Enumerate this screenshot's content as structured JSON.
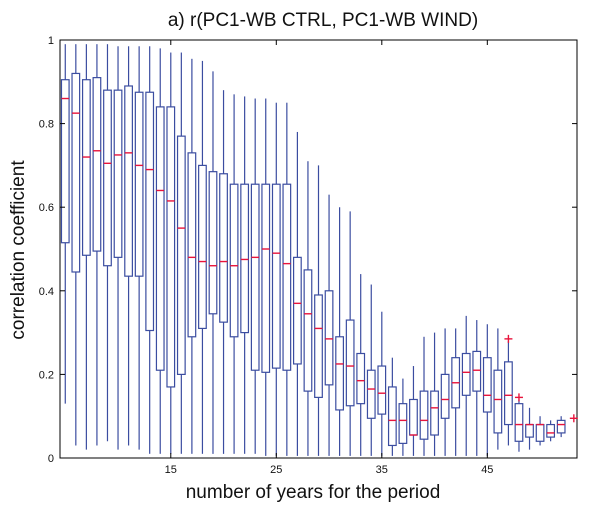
{
  "chart_data": {
    "type": "boxplot",
    "title": "a) r(PC1-WB CTRL, PC1-WB WIND)",
    "xlabel": "number of years for the period",
    "ylabel": "correlation coefficient",
    "xlim": [
      4.5,
      53.5
    ],
    "ylim": [
      0,
      1
    ],
    "xticks": [
      15,
      25,
      35,
      45
    ],
    "yticks": [
      0,
      0.2,
      0.4,
      0.6,
      0.8,
      1
    ],
    "ytick_labels": [
      "0",
      "0.2",
      "0.4",
      "0.6",
      "0.8",
      "1"
    ],
    "grid": false,
    "box_color": "#3b4da0",
    "median_color": "#e8143c",
    "outlier_color": "#e8143c",
    "boxes": [
      {
        "x": 5,
        "low": 0.13,
        "q1": 0.515,
        "median": 0.86,
        "q3": 0.905,
        "high": 0.99
      },
      {
        "x": 6,
        "low": 0.03,
        "q1": 0.445,
        "median": 0.825,
        "q3": 0.92,
        "high": 0.99
      },
      {
        "x": 7,
        "low": 0.02,
        "q1": 0.485,
        "median": 0.72,
        "q3": 0.905,
        "high": 0.99
      },
      {
        "x": 8,
        "low": 0.03,
        "q1": 0.495,
        "median": 0.735,
        "q3": 0.91,
        "high": 0.99
      },
      {
        "x": 9,
        "low": 0.04,
        "q1": 0.46,
        "median": 0.705,
        "q3": 0.88,
        "high": 0.99
      },
      {
        "x": 10,
        "low": 0.02,
        "q1": 0.48,
        "median": 0.725,
        "q3": 0.88,
        "high": 0.985
      },
      {
        "x": 11,
        "low": 0.03,
        "q1": 0.435,
        "median": 0.73,
        "q3": 0.89,
        "high": 0.985
      },
      {
        "x": 12,
        "low": 0.02,
        "q1": 0.435,
        "median": 0.7,
        "q3": 0.875,
        "high": 0.985
      },
      {
        "x": 13,
        "low": 0.01,
        "q1": 0.305,
        "median": 0.69,
        "q3": 0.875,
        "high": 0.985
      },
      {
        "x": 14,
        "low": 0.01,
        "q1": 0.21,
        "median": 0.64,
        "q3": 0.84,
        "high": 0.98
      },
      {
        "x": 15,
        "low": 0.01,
        "q1": 0.17,
        "median": 0.615,
        "q3": 0.84,
        "high": 0.97
      },
      {
        "x": 16,
        "low": 0.01,
        "q1": 0.2,
        "median": 0.55,
        "q3": 0.77,
        "high": 0.97
      },
      {
        "x": 17,
        "low": 0.01,
        "q1": 0.29,
        "median": 0.48,
        "q3": 0.73,
        "high": 0.955
      },
      {
        "x": 18,
        "low": 0.01,
        "q1": 0.31,
        "median": 0.47,
        "q3": 0.7,
        "high": 0.95
      },
      {
        "x": 19,
        "low": 0.01,
        "q1": 0.345,
        "median": 0.46,
        "q3": 0.685,
        "high": 0.925
      },
      {
        "x": 20,
        "low": 0.01,
        "q1": 0.325,
        "median": 0.47,
        "q3": 0.68,
        "high": 0.88
      },
      {
        "x": 21,
        "low": 0.01,
        "q1": 0.29,
        "median": 0.46,
        "q3": 0.655,
        "high": 0.87
      },
      {
        "x": 22,
        "low": 0.01,
        "q1": 0.3,
        "median": 0.475,
        "q3": 0.655,
        "high": 0.865
      },
      {
        "x": 23,
        "low": 0.01,
        "q1": 0.21,
        "median": 0.48,
        "q3": 0.655,
        "high": 0.86
      },
      {
        "x": 24,
        "low": 0.005,
        "q1": 0.205,
        "median": 0.5,
        "q3": 0.655,
        "high": 0.86
      },
      {
        "x": 25,
        "low": 0.005,
        "q1": 0.215,
        "median": 0.49,
        "q3": 0.655,
        "high": 0.85
      },
      {
        "x": 26,
        "low": 0.005,
        "q1": 0.21,
        "median": 0.465,
        "q3": 0.655,
        "high": 0.85
      },
      {
        "x": 27,
        "low": 0.005,
        "q1": 0.225,
        "median": 0.37,
        "q3": 0.48,
        "high": 0.78
      },
      {
        "x": 28,
        "low": 0.005,
        "q1": 0.16,
        "median": 0.345,
        "q3": 0.45,
        "high": 0.71
      },
      {
        "x": 29,
        "low": 0.005,
        "q1": 0.145,
        "median": 0.31,
        "q3": 0.39,
        "high": 0.7
      },
      {
        "x": 30,
        "low": 0.005,
        "q1": 0.175,
        "median": 0.285,
        "q3": 0.4,
        "high": 0.63
      },
      {
        "x": 31,
        "low": 0.005,
        "q1": 0.115,
        "median": 0.225,
        "q3": 0.29,
        "high": 0.6
      },
      {
        "x": 32,
        "low": 0.005,
        "q1": 0.125,
        "median": 0.22,
        "q3": 0.33,
        "high": 0.59
      },
      {
        "x": 33,
        "low": 0.005,
        "q1": 0.13,
        "median": 0.185,
        "q3": 0.25,
        "high": 0.44
      },
      {
        "x": 34,
        "low": 0.005,
        "q1": 0.095,
        "median": 0.165,
        "q3": 0.21,
        "high": 0.415
      },
      {
        "x": 35,
        "low": 0.005,
        "q1": 0.105,
        "median": 0.155,
        "q3": 0.22,
        "high": 0.35
      },
      {
        "x": 36,
        "low": 0.005,
        "q1": 0.03,
        "median": 0.09,
        "q3": 0.17,
        "high": 0.24
      },
      {
        "x": 37,
        "low": 0.005,
        "q1": 0.035,
        "median": 0.09,
        "q3": 0.13,
        "high": 0.19
      },
      {
        "x": 38,
        "low": 0.005,
        "q1": 0.055,
        "median": 0.055,
        "q3": 0.14,
        "high": 0.22
      },
      {
        "x": 39,
        "low": 0.005,
        "q1": 0.045,
        "median": 0.09,
        "q3": 0.16,
        "high": 0.29
      },
      {
        "x": 40,
        "low": 0.005,
        "q1": 0.055,
        "median": 0.12,
        "q3": 0.16,
        "high": 0.3
      },
      {
        "x": 41,
        "low": 0.005,
        "q1": 0.095,
        "median": 0.14,
        "q3": 0.2,
        "high": 0.31
      },
      {
        "x": 42,
        "low": 0.005,
        "q1": 0.12,
        "median": 0.18,
        "q3": 0.24,
        "high": 0.31
      },
      {
        "x": 43,
        "low": 0.005,
        "q1": 0.15,
        "median": 0.205,
        "q3": 0.25,
        "high": 0.34
      },
      {
        "x": 44,
        "low": 0.005,
        "q1": 0.16,
        "median": 0.21,
        "q3": 0.255,
        "high": 0.33
      },
      {
        "x": 45,
        "low": 0.005,
        "q1": 0.11,
        "median": 0.15,
        "q3": 0.24,
        "high": 0.32
      },
      {
        "x": 46,
        "low": 0.02,
        "q1": 0.06,
        "median": 0.14,
        "q3": 0.21,
        "high": 0.31
      },
      {
        "x": 47,
        "low": 0.03,
        "q1": 0.08,
        "median": 0.15,
        "q3": 0.23,
        "high": 0.28
      },
      {
        "x": 48,
        "low": 0.015,
        "q1": 0.04,
        "median": 0.08,
        "q3": 0.13,
        "high": 0.14
      },
      {
        "x": 49,
        "low": 0.02,
        "q1": 0.05,
        "median": 0.08,
        "q3": 0.08,
        "high": 0.12
      },
      {
        "x": 50,
        "low": 0.03,
        "q1": 0.04,
        "median": 0.08,
        "q3": 0.08,
        "high": 0.1
      },
      {
        "x": 51,
        "low": 0.04,
        "q1": 0.05,
        "median": 0.06,
        "q3": 0.08,
        "high": 0.09
      },
      {
        "x": 52,
        "low": 0.05,
        "q1": 0.06,
        "median": 0.08,
        "q3": 0.09,
        "high": 0.1
      }
    ],
    "outliers": [
      {
        "x": 47,
        "y": 0.285
      },
      {
        "x": 48,
        "y": 0.145
      },
      {
        "x": 53.2,
        "y": 0.095
      }
    ]
  }
}
